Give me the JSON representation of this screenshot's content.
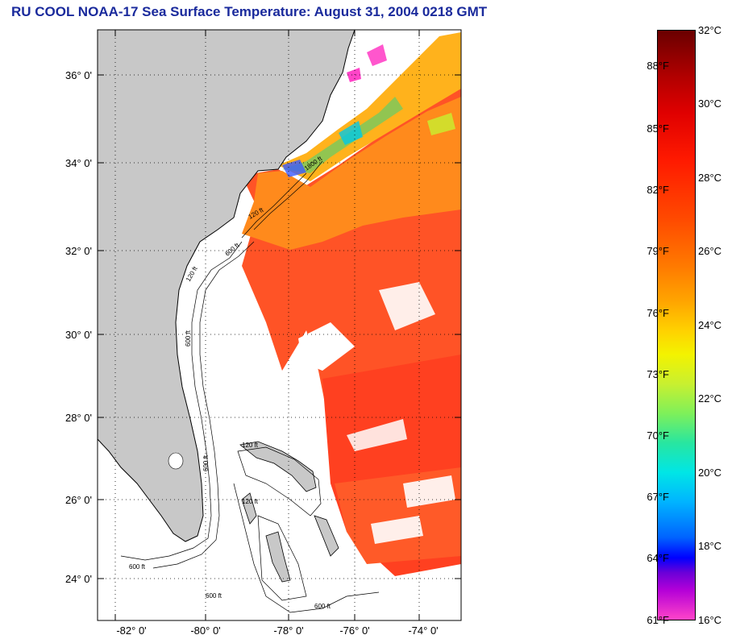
{
  "title": "RU COOL  NOAA-17  Sea Surface Temperature:  August 31, 2004 0218 GMT",
  "map": {
    "lon_ticks": [
      "-82° 0'",
      "-80° 0'",
      "-78° 0'",
      "-76° 0'",
      "-74° 0'"
    ],
    "lat_ticks": [
      "36° 0'",
      "34° 0'",
      "32° 0'",
      "30° 0'",
      "28° 0'",
      "26° 0'",
      "24° 0'"
    ],
    "contour_labels": [
      "120 ft",
      "600 ft",
      "1800 ft",
      "120 ft",
      "600 ft",
      "120 ft",
      "600 ft",
      "600 ft",
      "600 ft",
      "120 ft",
      "600 ft"
    ],
    "land_color": "#c8c8c8",
    "sst_color_warm": "#ff3a10",
    "sst_color_orange": "#ff7a10"
  },
  "colorbar": {
    "fahrenheit": [
      "88°F",
      "85°F",
      "82°F",
      "79°F",
      "76°F",
      "73°F",
      "70°F",
      "67°F",
      "64°F",
      "61°F"
    ],
    "celsius": [
      "32°C",
      "30°C",
      "28°C",
      "26°C",
      "24°C",
      "22°C",
      "20°C",
      "18°C",
      "16°C"
    ]
  }
}
